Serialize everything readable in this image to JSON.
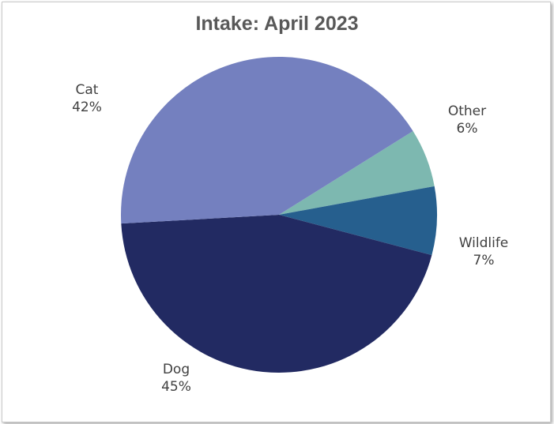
{
  "chart_data": {
    "type": "pie",
    "title": "Intake: April 2023",
    "slices": [
      {
        "label": "Other",
        "percent_label": "6%",
        "value": 6,
        "color": "#7db8b0"
      },
      {
        "label": "Wildlife",
        "percent_label": "7%",
        "value": 7,
        "color": "#265f8e"
      },
      {
        "label": "Dog",
        "percent_label": "45%",
        "value": 45,
        "color": "#222a62"
      },
      {
        "label": "Cat",
        "percent_label": "42%",
        "value": 42,
        "color": "#7480bf"
      }
    ],
    "legend": false,
    "data_labels": "outside"
  }
}
